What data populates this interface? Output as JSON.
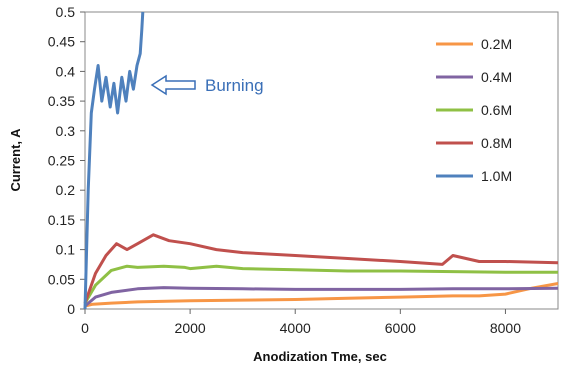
{
  "chart_data": {
    "type": "line",
    "xlabel": "Anodization Tme, sec",
    "ylabel": "Current, A",
    "xlim": [
      0,
      9000
    ],
    "ylim": [
      0,
      0.5
    ],
    "x_ticks": [
      "0",
      "2000",
      "4000",
      "6000",
      "8000"
    ],
    "y_ticks": [
      "0",
      "0.05",
      "0.1",
      "0.15",
      "0.2",
      "0.25",
      "0.3",
      "0.35",
      "0.4",
      "0.45",
      "0.5"
    ],
    "grid": false,
    "legend_position": "top-right",
    "annotations": [
      {
        "text": "Burning",
        "x": 1300,
        "y": 0.38
      }
    ],
    "series": [
      {
        "name": "0.2M",
        "color": "#f79646",
        "x": [
          0,
          150,
          500,
          1000,
          2000,
          3000,
          4000,
          5000,
          6000,
          7000,
          7500,
          8000,
          8500,
          9000
        ],
        "y": [
          0.005,
          0.008,
          0.01,
          0.012,
          0.014,
          0.015,
          0.016,
          0.018,
          0.02,
          0.022,
          0.022,
          0.025,
          0.035,
          0.043
        ]
      },
      {
        "name": "0.4M",
        "color": "#8064a2",
        "x": [
          0,
          200,
          500,
          1000,
          1500,
          2000,
          3000,
          4000,
          5000,
          6000,
          7000,
          8000,
          9000
        ],
        "y": [
          0.005,
          0.02,
          0.028,
          0.034,
          0.036,
          0.035,
          0.034,
          0.033,
          0.033,
          0.033,
          0.034,
          0.034,
          0.035
        ]
      },
      {
        "name": "0.6M",
        "color": "#8fc045",
        "x": [
          0,
          200,
          500,
          800,
          1000,
          1500,
          1900,
          2000,
          2500,
          3000,
          4000,
          5000,
          6000,
          7000,
          8000,
          9000
        ],
        "y": [
          0.01,
          0.04,
          0.065,
          0.072,
          0.07,
          0.072,
          0.07,
          0.068,
          0.072,
          0.068,
          0.066,
          0.064,
          0.064,
          0.063,
          0.062,
          0.062
        ]
      },
      {
        "name": "0.8M",
        "color": "#c0504d",
        "x": [
          0,
          200,
          400,
          600,
          800,
          1000,
          1300,
          1600,
          2000,
          2500,
          3000,
          4000,
          5000,
          6000,
          6800,
          7000,
          7500,
          8000,
          9000
        ],
        "y": [
          0.01,
          0.06,
          0.09,
          0.11,
          0.1,
          0.11,
          0.125,
          0.115,
          0.11,
          0.1,
          0.095,
          0.09,
          0.085,
          0.08,
          0.075,
          0.09,
          0.08,
          0.08,
          0.078
        ]
      },
      {
        "name": "1.0M",
        "color": "#4f81bd",
        "x": [
          0,
          60,
          120,
          180,
          250,
          320,
          400,
          480,
          550,
          620,
          700,
          780,
          850,
          920,
          990,
          1050,
          1080,
          1100
        ],
        "y": [
          0.0,
          0.2,
          0.33,
          0.37,
          0.41,
          0.35,
          0.39,
          0.34,
          0.38,
          0.33,
          0.39,
          0.35,
          0.4,
          0.37,
          0.41,
          0.43,
          0.47,
          0.5
        ]
      }
    ]
  }
}
